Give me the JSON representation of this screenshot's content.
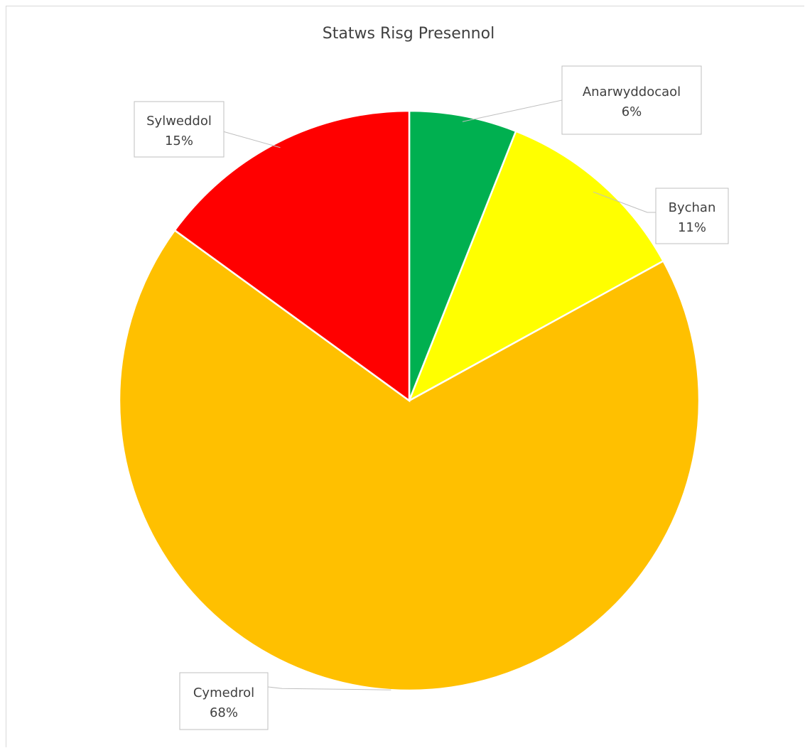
{
  "chart_data": {
    "type": "pie",
    "title": "Statws Risg Presennol",
    "slices": [
      {
        "label": "Anarwyddocaol",
        "value": 6,
        "value_label": "6%",
        "color": "#00b050"
      },
      {
        "label": "Bychan",
        "value": 11,
        "value_label": "11%",
        "color": "#ffff00"
      },
      {
        "label": "Cymedrol",
        "value": 68,
        "value_label": "68%",
        "color": "#ffc000"
      },
      {
        "label": "Sylweddol",
        "value": 15,
        "value_label": "15%",
        "color": "#ff0000"
      }
    ],
    "start": "12 o'clock",
    "direction": "clockwise",
    "legend": "none",
    "data_labels": "callouts"
  }
}
